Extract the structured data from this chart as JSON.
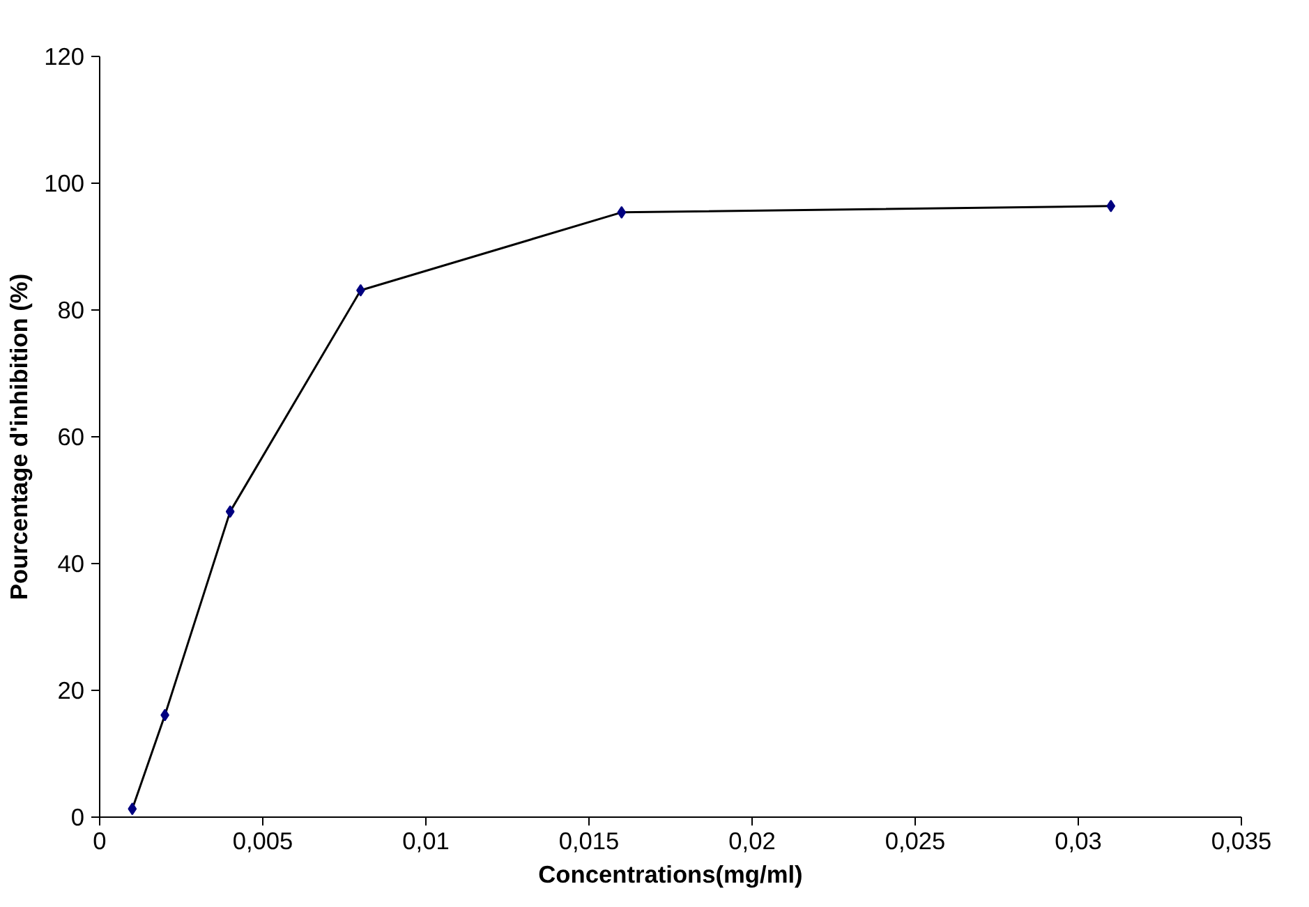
{
  "chart_data": {
    "type": "line",
    "xlabel": "Concentrations(mg/ml)",
    "ylabel": "Pourcentage d'inhibition (%)",
    "x": [
      0.001,
      0.002,
      0.004,
      0.008,
      0.016,
      0.031
    ],
    "series": [
      {
        "color": "#000080",
        "values": [
          1.3,
          16.1,
          48.2,
          83.1,
          95.4,
          96.4
        ]
      }
    ],
    "xlim": [
      0,
      0.035
    ],
    "xticks": [
      0,
      {
        "value": 0.005,
        "label": "0,005"
      },
      {
        "value": 0.01,
        "label": "0,01"
      },
      {
        "value": 0.015,
        "label": "0,015"
      },
      {
        "value": 0.02,
        "label": "0,02"
      },
      {
        "value": 0.025,
        "label": "0,025"
      },
      {
        "value": 0.03,
        "label": "0,03"
      },
      {
        "value": 0.035,
        "label": "0,035"
      }
    ],
    "ylim": [
      0,
      120
    ],
    "yticks": [
      0,
      20,
      40,
      60,
      80,
      100,
      120
    ],
    "grid": false,
    "marker": "diamond",
    "line_style": "solid"
  }
}
